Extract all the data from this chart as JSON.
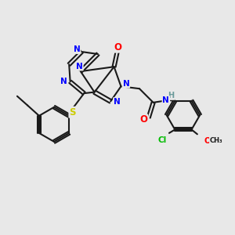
{
  "background_color": "#e8e8e8",
  "bond_color": "#1a1a1a",
  "atom_colors": {
    "N": "#0000ff",
    "O": "#ff0000",
    "S": "#cccc00",
    "Cl": "#00bb00",
    "H": "#6a9a9a",
    "C": "#1a1a1a"
  },
  "figsize": [
    3.0,
    3.0
  ],
  "dpi": 100
}
